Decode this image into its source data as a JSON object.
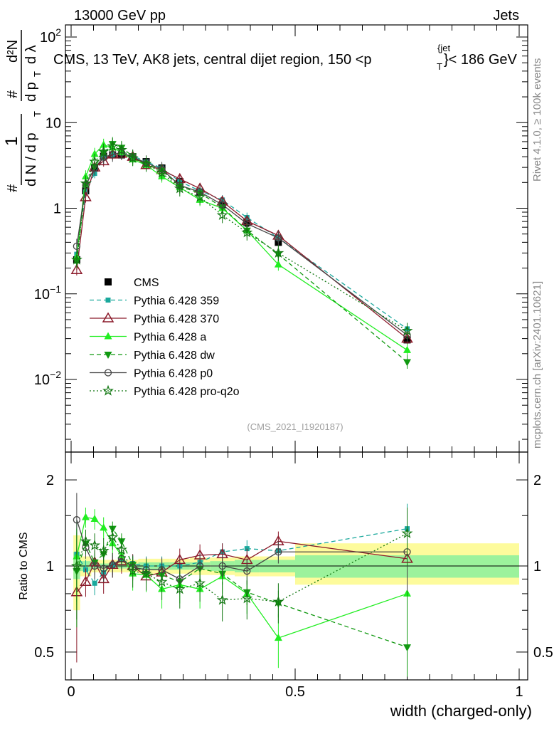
{
  "header": {
    "left": "13000 GeV pp",
    "right": "Jets",
    "title": "CMS, 13 TeV, AK8 jets, central dijet region, 150 <p",
    "title_sup": "{jet",
    "title_sub": "T",
    "title_end": "}< 186 GeV",
    "side_rivet": "Rivet 4.1.0, ≥ 100k events",
    "side_mcplots": "mcplots.cern.ch [arXiv:2401.10621]",
    "analysis_id": "(CMS_2021_I1920187)"
  },
  "ylabel_main": {
    "hash1": "#",
    "one": "1",
    "dn": "d N / d p",
    "dn_sub": "T",
    "hash2": "#",
    "d2n_num": "d²N",
    "d2n_den": "d p",
    "d2n_den_sub": "T",
    "dlambda": "d λ"
  },
  "ratio_axis": {
    "label": "Ratio to CMS",
    "ticks": [
      "2",
      "1",
      "0.5"
    ],
    "tick_values": [
      2,
      1,
      0.5
    ]
  },
  "x_axis": {
    "label": "width (charged-only)",
    "ticks": [
      "0",
      "0.5",
      "1"
    ],
    "tick_values": [
      0,
      0.5,
      1
    ]
  },
  "chart_data": {
    "type": "line",
    "title": "CMS, 13 TeV, AK8 jets, central dijet region, 150 < pT < 186 GeV",
    "xlabel": "width (charged-only)",
    "ylabel": "1/(dN/dpT) d²N/(dpT dλ)",
    "xlim": [
      0,
      1
    ],
    "ylim": [
      0.001,
      200
    ],
    "yscale": "log",
    "y_tick_labels": [
      "10²",
      "10",
      "1",
      "10⁻¹",
      "10⁻²"
    ],
    "ratio_ylim": [
      0.4,
      2.4
    ],
    "x": [
      0.0125,
      0.0325,
      0.0525,
      0.0725,
      0.0925,
      0.1125,
      0.1375,
      0.1675,
      0.2025,
      0.2425,
      0.2875,
      0.3375,
      0.3925,
      0.4625,
      0.75
    ],
    "series": [
      {
        "name": "CMS",
        "color": "#000000",
        "marker": "square",
        "line": "none",
        "values": [
          0.25,
          1.6,
          2.95,
          4.05,
          4.2,
          4.2,
          4.0,
          3.5,
          2.95,
          2.05,
          1.55,
          1.1,
          0.68,
          0.4,
          0.029
        ]
      },
      {
        "name": "Pythia 6.428 359",
        "color": "#1aa89c",
        "marker": "square-small",
        "line": "dashed",
        "values": [
          0.29,
          1.55,
          2.55,
          3.85,
          4.25,
          4.4,
          4.1,
          3.5,
          2.95,
          2.05,
          1.6,
          1.25,
          0.78,
          0.45,
          0.039
        ]
      },
      {
        "name": "Pythia 6.428 370",
        "color": "#8b1a2a",
        "marker": "triangle-open",
        "line": "solid",
        "values": [
          0.19,
          1.35,
          3.0,
          3.55,
          4.25,
          4.35,
          4.0,
          3.2,
          2.8,
          2.2,
          1.7,
          1.2,
          0.71,
          0.48,
          0.03
        ]
      },
      {
        "name": "Pythia 6.428 a",
        "color": "#22ee22",
        "marker": "triangle",
        "line": "solid",
        "values": [
          0.27,
          2.35,
          4.3,
          5.5,
          5.1,
          4.5,
          3.7,
          3.2,
          2.35,
          1.75,
          1.25,
          1.0,
          0.55,
          0.22,
          0.022
        ]
      },
      {
        "name": "Pythia 6.428 dw",
        "color": "#119911",
        "marker": "triangle-down",
        "line": "dashed",
        "values": [
          0.24,
          1.9,
          3.05,
          4.45,
          5.65,
          5.1,
          4.05,
          3.3,
          2.75,
          1.8,
          1.5,
          1.03,
          0.55,
          0.29,
          0.016
        ]
      },
      {
        "name": "Pythia 6.428 p0",
        "color": "#444444",
        "marker": "circle-open",
        "line": "solid",
        "values": [
          0.36,
          1.85,
          2.95,
          3.95,
          4.25,
          4.45,
          3.95,
          3.4,
          2.85,
          1.85,
          1.55,
          1.1,
          0.66,
          0.45,
          0.033
        ]
      },
      {
        "name": "Pythia 6.428 pro-q2o",
        "color": "#117711",
        "marker": "star",
        "line": "dotted",
        "values": [
          0.25,
          1.95,
          3.5,
          4.6,
          5.3,
          4.8,
          3.85,
          3.3,
          2.6,
          1.7,
          1.35,
          0.83,
          0.52,
          0.3,
          0.037
        ]
      }
    ],
    "ratio_series": [
      {
        "name": "Pythia 6.428 359",
        "values": [
          1.1,
          0.97,
          0.87,
          0.95,
          1.01,
          1.05,
          1.02,
          1.0,
          1.0,
          1.0,
          1.03,
          1.12,
          1.15,
          1.13,
          1.35
        ]
      },
      {
        "name": "Pythia 6.428 370",
        "values": [
          0.81,
          0.88,
          1.03,
          0.9,
          1.01,
          1.04,
          1.0,
          0.92,
          0.95,
          1.05,
          1.09,
          1.1,
          1.05,
          1.22,
          1.06
        ]
      },
      {
        "name": "Pythia 6.428 a",
        "values": [
          1.08,
          1.48,
          1.46,
          1.36,
          1.2,
          1.09,
          0.94,
          0.93,
          0.83,
          0.86,
          0.83,
          0.92,
          0.8,
          0.56,
          0.8
        ]
      },
      {
        "name": "Pythia 6.428 dw",
        "values": [
          0.96,
          1.2,
          1.03,
          1.1,
          1.35,
          1.22,
          1.01,
          0.94,
          0.93,
          0.88,
          0.98,
          0.94,
          0.81,
          0.74,
          0.52
        ]
      },
      {
        "name": "Pythia 6.428 p0",
        "values": [
          1.45,
          1.16,
          1.0,
          0.98,
          1.01,
          1.06,
          0.99,
          0.97,
          0.97,
          0.9,
          1.0,
          1.0,
          0.96,
          1.12,
          1.12
        ]
      },
      {
        "name": "Pythia 6.428 pro-q2o",
        "values": [
          1.0,
          1.22,
          1.18,
          1.13,
          1.26,
          1.14,
          0.96,
          0.94,
          0.88,
          0.83,
          0.87,
          0.76,
          0.77,
          0.75,
          1.3
        ]
      }
    ],
    "uncertainty_band": {
      "x_edges": [
        0.005,
        0.02,
        0.045,
        0.06,
        0.085,
        0.1,
        0.125,
        0.15,
        0.185,
        0.22,
        0.265,
        0.31,
        0.365,
        0.42,
        0.5,
        1.0
      ],
      "inner_low": [
        0.9,
        0.96,
        0.98,
        0.98,
        0.98,
        0.98,
        0.98,
        0.97,
        0.97,
        0.97,
        0.97,
        0.96,
        0.95,
        0.95,
        0.91
      ],
      "inner_high": [
        1.12,
        1.04,
        1.03,
        1.02,
        1.02,
        1.02,
        1.02,
        1.03,
        1.03,
        1.03,
        1.03,
        1.04,
        1.05,
        1.05,
        1.09
      ],
      "outer_low": [
        0.7,
        0.92,
        0.95,
        0.95,
        0.95,
        0.95,
        0.95,
        0.94,
        0.94,
        0.94,
        0.93,
        0.93,
        0.92,
        0.92,
        0.86
      ],
      "outer_high": [
        1.28,
        1.08,
        1.05,
        1.05,
        1.05,
        1.05,
        1.05,
        1.06,
        1.06,
        1.06,
        1.07,
        1.07,
        1.08,
        1.08,
        1.2
      ]
    }
  }
}
